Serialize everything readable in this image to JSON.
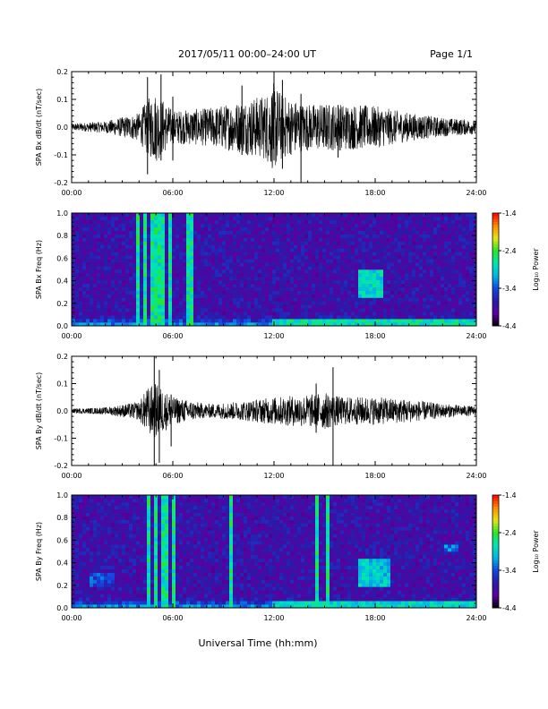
{
  "header": {
    "title": "2017/05/11   00:00–24:00 UT",
    "page": "Page 1/1"
  },
  "footer": {
    "xlabel": "Universal Time (hh:mm)"
  },
  "colors": {
    "trace": "#000000",
    "spectrogram_background": "#2a1aa8",
    "colormap": [
      "#000000",
      "#5a00a0",
      "#2a1aa8",
      "#1248e0",
      "#00b4e6",
      "#00e6b4",
      "#28e628",
      "#e6e614",
      "#ff8c00",
      "#ff0000"
    ]
  },
  "chart_data": [
    {
      "type": "line",
      "ylabel": "SPA Bx dB/dt (nT/sec)",
      "xlim": [
        "00:00",
        "24:00"
      ],
      "ylim": [
        -0.2,
        0.2
      ],
      "x_ticks": [
        "00:00",
        "06:00",
        "12:00",
        "18:00",
        "24:00"
      ],
      "y_ticks": [
        "-0.2",
        "-0.1",
        "0.0",
        "0.1",
        "0.2"
      ],
      "envelope": {
        "x_hours": [
          0,
          2,
          4,
          4.5,
          5,
          6,
          8,
          10,
          11.5,
          12,
          12.5,
          13,
          14,
          16,
          18,
          20,
          22,
          24
        ],
        "amplitude": [
          0.015,
          0.025,
          0.06,
          0.12,
          0.15,
          0.07,
          0.08,
          0.11,
          0.14,
          0.19,
          0.14,
          0.12,
          0.1,
          0.1,
          0.09,
          0.06,
          0.04,
          0.03
        ]
      },
      "spikes": [
        {
          "x_hours": 4.5,
          "min": -0.17,
          "max": 0.18
        },
        {
          "x_hours": 5.3,
          "min": -0.12,
          "max": 0.19
        },
        {
          "x_hours": 6.0,
          "min": -0.12,
          "max": 0.11
        },
        {
          "x_hours": 10.1,
          "min": -0.1,
          "max": 0.15
        },
        {
          "x_hours": 12.0,
          "min": -0.12,
          "max": 0.2
        },
        {
          "x_hours": 12.5,
          "min": -0.15,
          "max": 0.17
        },
        {
          "x_hours": 13.6,
          "min": -0.2,
          "max": 0.12
        },
        {
          "x_hours": 15.8,
          "min": -0.11,
          "max": 0.08
        }
      ]
    },
    {
      "type": "heatmap",
      "ylabel": "SPA Bx Freq (Hz)",
      "xlim": [
        "00:00",
        "24:00"
      ],
      "ylim": [
        0.0,
        1.0
      ],
      "x_ticks": [
        "00:00",
        "06:00",
        "12:00",
        "18:00",
        "24:00"
      ],
      "y_ticks": [
        "0.0",
        "0.2",
        "0.4",
        "0.6",
        "0.8",
        "1.0"
      ],
      "colorbar": {
        "label": "Log₁₀ Power",
        "range": [
          -4.4,
          -1.4
        ],
        "ticks": [
          "-1.4",
          "-2.4",
          "-3.4",
          "-4.4"
        ]
      },
      "vertical_bands_hours": [
        4.0,
        4.4,
        4.8,
        5.1,
        5.5,
        5.8,
        7.0
      ],
      "features": [
        {
          "x_hours": [
            17.0,
            18.5
          ],
          "y_hz": [
            0.25,
            0.5
          ],
          "level": -2.6
        },
        {
          "x_hours": [
            12.0,
            24.0
          ],
          "y_hz": [
            0.0,
            0.06
          ],
          "level": -2.5
        }
      ]
    },
    {
      "type": "line",
      "ylabel": "SPA By dB/dt (nT/sec)",
      "xlim": [
        "00:00",
        "24:00"
      ],
      "ylim": [
        -0.2,
        0.2
      ],
      "x_ticks": [
        "00:00",
        "06:00",
        "12:00",
        "18:00",
        "24:00"
      ],
      "y_ticks": [
        "-0.2",
        "-0.1",
        "0.0",
        "0.1",
        "0.2"
      ],
      "envelope": {
        "x_hours": [
          0,
          2,
          4,
          4.5,
          5,
          6,
          8,
          10,
          12,
          14,
          15,
          16,
          18,
          20,
          22,
          24
        ],
        "amplitude": [
          0.01,
          0.015,
          0.04,
          0.1,
          0.12,
          0.06,
          0.03,
          0.04,
          0.06,
          0.07,
          0.08,
          0.06,
          0.06,
          0.05,
          0.03,
          0.02
        ]
      },
      "spikes": [
        {
          "x_hours": 4.9,
          "min": -0.2,
          "max": 0.2
        },
        {
          "x_hours": 5.2,
          "min": -0.19,
          "max": 0.15
        },
        {
          "x_hours": 5.9,
          "min": -0.13,
          "max": 0.06
        },
        {
          "x_hours": 15.5,
          "min": -0.2,
          "max": 0.16
        },
        {
          "x_hours": 14.5,
          "min": -0.08,
          "max": 0.1
        }
      ]
    },
    {
      "type": "heatmap",
      "ylabel": "SPA By Freq (Hz)",
      "xlim": [
        "00:00",
        "24:00"
      ],
      "ylim": [
        0.0,
        1.0
      ],
      "x_ticks": [
        "00:00",
        "06:00",
        "12:00",
        "18:00",
        "24:00"
      ],
      "y_ticks": [
        "0.0",
        "0.2",
        "0.4",
        "0.6",
        "0.8",
        "1.0"
      ],
      "colorbar": {
        "label": "Log₁₀ Power",
        "range": [
          -4.4,
          -1.4
        ],
        "ticks": [
          "-1.4",
          "-2.4",
          "-3.4",
          "-4.4"
        ]
      },
      "vertical_bands_hours": [
        4.6,
        4.9,
        5.4,
        5.7,
        6.1,
        9.5,
        14.5,
        15.2
      ],
      "features": [
        {
          "x_hours": [
            17.0,
            19.0
          ],
          "y_hz": [
            0.2,
            0.45
          ],
          "level": -2.7
        },
        {
          "x_hours": [
            12.0,
            24.0
          ],
          "y_hz": [
            0.0,
            0.05
          ],
          "level": -2.6
        },
        {
          "x_hours": [
            1.0,
            2.5
          ],
          "y_hz": [
            0.2,
            0.3
          ],
          "level": -3.2
        },
        {
          "x_hours": [
            22.0,
            23.0
          ],
          "y_hz": [
            0.5,
            0.55
          ],
          "level": -3.0
        }
      ]
    }
  ]
}
